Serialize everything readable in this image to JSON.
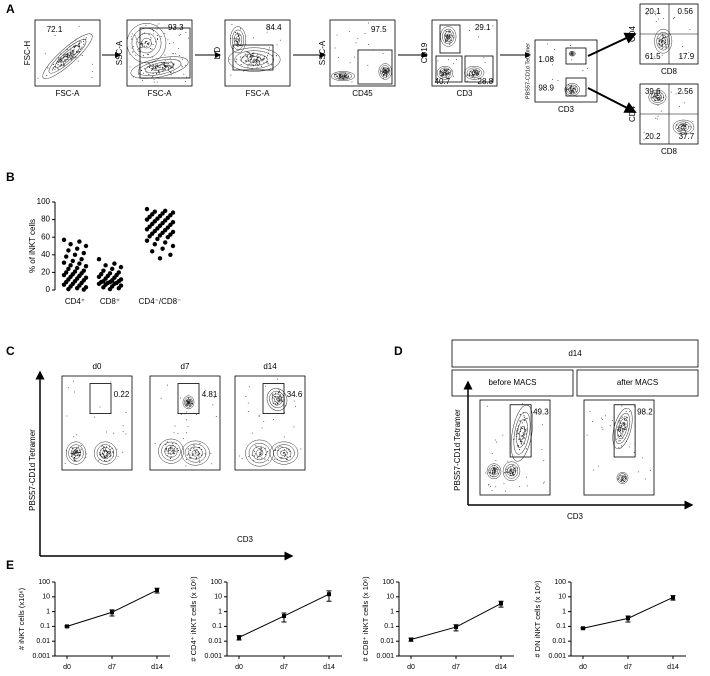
{
  "panel_labels": [
    "A",
    "B",
    "C",
    "D",
    "E"
  ],
  "panel_a": {
    "plots": [
      {
        "x_label": "FSC-A",
        "y_label": "FSC-H",
        "gates": [
          72.1
        ]
      },
      {
        "x_label": "FSC-A",
        "y_label": "SSC-A",
        "gates": [
          93.3
        ]
      },
      {
        "x_label": "FSC-A",
        "y_label": "L/D",
        "gates": [
          84.4
        ]
      },
      {
        "x_label": "CD45",
        "y_label": "SSC-A",
        "gates": [
          97.5
        ]
      },
      {
        "x_label": "CD3",
        "y_label": "CD19",
        "gates": [
          29.1,
          40.7,
          28.8
        ]
      },
      {
        "x_label": "CD3",
        "y_label": "PBS57-CD1d Tetramer",
        "gates": [
          1.08,
          98.9
        ]
      },
      {
        "x_label": "CD8",
        "y_label": "CD4",
        "gates": [
          20.1,
          0.56,
          61.5,
          17.9
        ]
      },
      {
        "x_label": "CD8",
        "y_label": "CD4",
        "gates": [
          39.6,
          2.56,
          20.2,
          37.7
        ]
      }
    ]
  },
  "panel_c": {
    "y_label": "PBS57-CD1d Tetramer",
    "x_label": "CD3",
    "plots": [
      {
        "title": "d0",
        "gate": 0.22
      },
      {
        "title": "d7",
        "gate": 4.81
      },
      {
        "title": "d14",
        "gate": 34.6
      }
    ]
  },
  "panel_d": {
    "header": "d14",
    "y_label": "PBS57-CD1d Tetramer",
    "x_label": "CD3",
    "plots": [
      {
        "title": "before MACS",
        "gate": 49.3
      },
      {
        "title": "after MACS",
        "gate": 98.2
      }
    ]
  },
  "chart_data": [
    {
      "type": "strip",
      "y_label": "% of iNKT cells",
      "categories": [
        "CD4⁺",
        "CD8⁺",
        "CD4⁻/CD8⁻"
      ],
      "color": "#000000",
      "ylim": [
        0,
        100
      ],
      "yticks": [
        0,
        20,
        40,
        60,
        80,
        100
      ],
      "values": [
        [
          57,
          55,
          52,
          50,
          47,
          45,
          42,
          40,
          38,
          35,
          33,
          31,
          30,
          28,
          27,
          25,
          24,
          22,
          21,
          20,
          19,
          18,
          17,
          16,
          15,
          14,
          13,
          12,
          11,
          10,
          9,
          8,
          7,
          6,
          5,
          4,
          3,
          2,
          1,
          0.5
        ],
        [
          35,
          30,
          28,
          26,
          24,
          22,
          20,
          19,
          18,
          17,
          16,
          15,
          14,
          13,
          12,
          11,
          10,
          10,
          9,
          9,
          8,
          8,
          7,
          7,
          6,
          5,
          4,
          3,
          2,
          1
        ],
        [
          92,
          90,
          89,
          88,
          87,
          86,
          85,
          84,
          83,
          82,
          81,
          80,
          79,
          78,
          77,
          76,
          75,
          74,
          73,
          72,
          71,
          70,
          69,
          68,
          67,
          66,
          65,
          64,
          63,
          62,
          61,
          60,
          58,
          56,
          54,
          52,
          50,
          47,
          44,
          40,
          36
        ]
      ]
    },
    {
      "type": "line",
      "y_label": "# iNKT cells (x10⁶)",
      "categories": [
        "d0",
        "d7",
        "d14"
      ],
      "values": [
        0.1,
        0.9,
        28
      ],
      "errors": [
        0.01,
        0.4,
        10
      ],
      "ylim": [
        0.001,
        100
      ],
      "yticks": [
        0.001,
        0.01,
        0.1,
        1,
        10,
        100
      ],
      "log_scale": true,
      "color": "#000000"
    },
    {
      "type": "line",
      "y_label": "# CD4⁺ iNKT cells (x 10⁶)",
      "categories": [
        "d0",
        "d7",
        "d14"
      ],
      "values": [
        0.018,
        0.5,
        15
      ],
      "errors": [
        0.006,
        0.3,
        10
      ],
      "ylim": [
        0.001,
        100
      ],
      "yticks": [
        0.001,
        0.01,
        0.1,
        1,
        10,
        100
      ],
      "log_scale": true,
      "color": "#000000"
    },
    {
      "type": "line",
      "y_label": "# CD8⁺ iNKT cells (x 10⁶)",
      "categories": [
        "d0",
        "d7",
        "d14"
      ],
      "values": [
        0.013,
        0.09,
        3.5
      ],
      "errors": [
        0.003,
        0.04,
        1.5
      ],
      "ylim": [
        0.001,
        100
      ],
      "yticks": [
        0.001,
        0.01,
        0.1,
        1,
        10,
        100
      ],
      "log_scale": true,
      "color": "#000000"
    },
    {
      "type": "line",
      "y_label": "# DN iNKT cells (x 10⁶)",
      "categories": [
        "d0",
        "d7",
        "d14"
      ],
      "values": [
        0.075,
        0.35,
        9
      ],
      "errors": [
        0.008,
        0.15,
        3
      ],
      "ylim": [
        0.001,
        100
      ],
      "yticks": [
        0.001,
        0.01,
        0.1,
        1,
        10,
        100
      ],
      "log_scale": true,
      "color": "#000000"
    }
  ]
}
